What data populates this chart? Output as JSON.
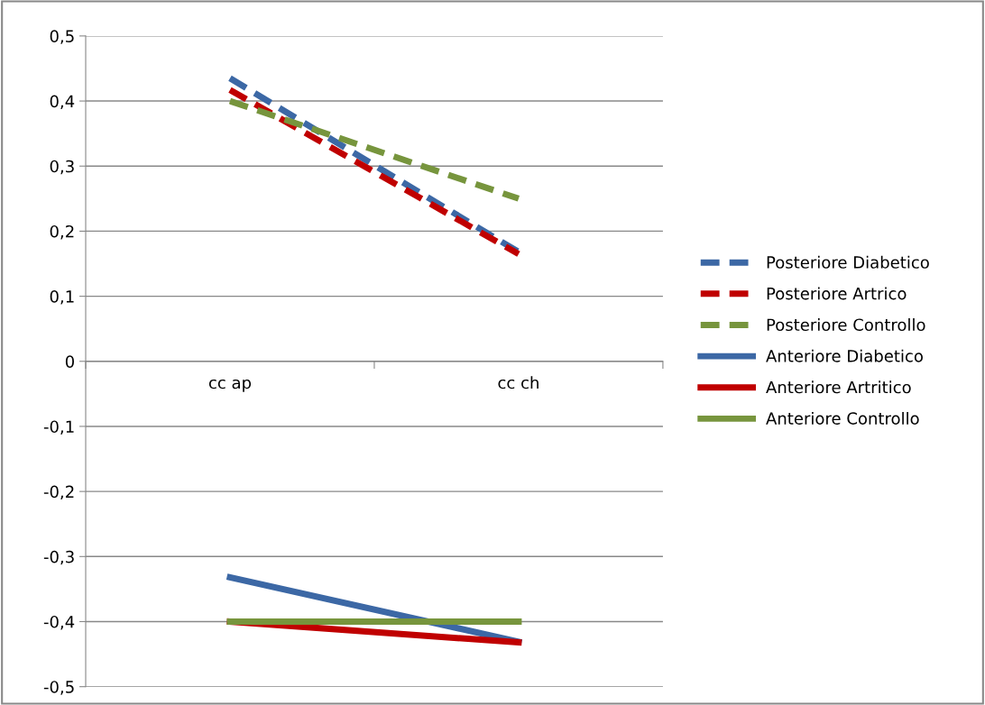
{
  "chart_data": {
    "type": "line",
    "categories": [
      "cc ap",
      "cc ch"
    ],
    "series": [
      {
        "name": "Posteriore Diabetico",
        "color": "#3c68a5",
        "line_style": "dashed",
        "values": [
          0.435,
          0.168
        ]
      },
      {
        "name": "Posteriore Artrico",
        "color": "#c00000",
        "line_style": "dashed",
        "values": [
          0.417,
          0.165
        ]
      },
      {
        "name": "Posteriore Controllo",
        "color": "#77953d",
        "line_style": "dashed",
        "values": [
          0.4,
          0.25
        ]
      },
      {
        "name": "Anteriore Diabetico",
        "color": "#3c68a5",
        "line_style": "solid",
        "values": [
          -0.332,
          -0.431
        ]
      },
      {
        "name": "Anteriore Artritico",
        "color": "#c00000",
        "line_style": "solid",
        "values": [
          -0.4,
          -0.432
        ]
      },
      {
        "name": "Anteriore Controllo",
        "color": "#77953d",
        "line_style": "solid",
        "values": [
          -0.4,
          -0.4
        ]
      }
    ],
    "ylim": [
      -0.5,
      0.5
    ],
    "yticks": [
      {
        "value": -0.5,
        "label": "-0,5"
      },
      {
        "value": -0.4,
        "label": "-0,4"
      },
      {
        "value": -0.3,
        "label": "-0,3"
      },
      {
        "value": -0.2,
        "label": "-0,2"
      },
      {
        "value": -0.1,
        "label": "-0,1"
      },
      0,
      {
        "value": 0.1,
        "label": "0,1"
      },
      {
        "value": 0.2,
        "label": "0,2"
      },
      {
        "value": 0.3,
        "label": "0,3"
      },
      {
        "value": 0.4,
        "label": "0,4"
      },
      {
        "value": 0.5,
        "label": "0,5"
      }
    ],
    "grid": "y",
    "legend": "right",
    "marker": "none"
  }
}
